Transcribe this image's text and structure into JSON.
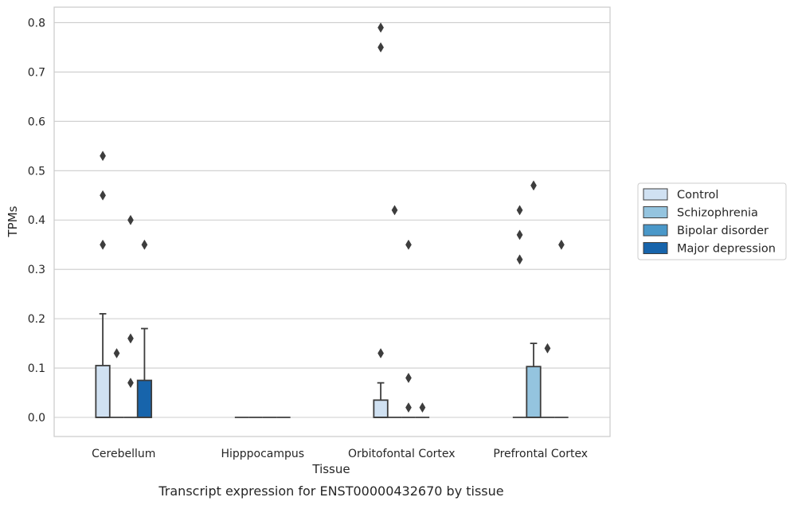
{
  "chart_data": {
    "type": "box",
    "caption": "Transcript expression for ENST00000432670 by tissue",
    "xlabel": "Tissue",
    "ylabel": "TPMs",
    "ylim": [
      -0.04,
      0.83
    ],
    "yticks": [
      0.0,
      0.1,
      0.2,
      0.3,
      0.4,
      0.5,
      0.6,
      0.7,
      0.8
    ],
    "ytick_labels": [
      "0.0",
      "0.1",
      "0.2",
      "0.3",
      "0.4",
      "0.5",
      "0.6",
      "0.7",
      "0.8"
    ],
    "grid": true,
    "legend_position": "right",
    "categories": [
      "Cerebellum",
      "Hipppocampus",
      "Orbitofontal Cortex",
      "Prefrontal Cortex"
    ],
    "series": [
      {
        "name": "Control",
        "color": "#d0e1f2",
        "boxes": [
          {
            "q1": 0.0,
            "median": 0.0,
            "q3": 0.105,
            "whisker_low": 0.0,
            "whisker_high": 0.21,
            "outliers": [
              0.35,
              0.45,
              0.53
            ]
          },
          {
            "q1": 0.0,
            "median": 0.0,
            "q3": 0.0,
            "whisker_low": 0.0,
            "whisker_high": 0.0,
            "outliers": []
          },
          {
            "q1": 0.0,
            "median": 0.0,
            "q3": 0.035,
            "whisker_low": 0.0,
            "whisker_high": 0.07,
            "outliers": [
              0.13,
              0.75,
              0.79
            ]
          },
          {
            "q1": 0.0,
            "median": 0.0,
            "q3": 0.0,
            "whisker_low": 0.0,
            "whisker_high": 0.0,
            "outliers": [
              0.32,
              0.37,
              0.42
            ]
          }
        ]
      },
      {
        "name": "Schizophrenia",
        "color": "#94c4df",
        "boxes": [
          {
            "q1": 0.0,
            "median": 0.0,
            "q3": 0.0,
            "whisker_low": 0.0,
            "whisker_high": 0.0,
            "outliers": [
              0.13
            ]
          },
          {
            "q1": 0.0,
            "median": 0.0,
            "q3": 0.0,
            "whisker_low": 0.0,
            "whisker_high": 0.0,
            "outliers": []
          },
          {
            "q1": 0.0,
            "median": 0.0,
            "q3": 0.0,
            "whisker_low": 0.0,
            "whisker_high": 0.0,
            "outliers": [
              0.42
            ]
          },
          {
            "q1": 0.0,
            "median": 0.0,
            "q3": 0.103,
            "whisker_low": 0.0,
            "whisker_high": 0.15,
            "outliers": [
              0.47
            ]
          }
        ]
      },
      {
        "name": "Bipolar disorder",
        "color": "#4a98c9",
        "boxes": [
          {
            "q1": 0.0,
            "median": 0.0,
            "q3": 0.0,
            "whisker_low": 0.0,
            "whisker_high": 0.0,
            "outliers": [
              0.07,
              0.16,
              0.4
            ]
          },
          {
            "q1": 0.0,
            "median": 0.0,
            "q3": 0.0,
            "whisker_low": 0.0,
            "whisker_high": 0.0,
            "outliers": []
          },
          {
            "q1": 0.0,
            "median": 0.0,
            "q3": 0.0,
            "whisker_low": 0.0,
            "whisker_high": 0.0,
            "outliers": [
              0.02,
              0.08,
              0.35
            ]
          },
          {
            "q1": 0.0,
            "median": 0.0,
            "q3": 0.0,
            "whisker_low": 0.0,
            "whisker_high": 0.0,
            "outliers": [
              0.14
            ]
          }
        ]
      },
      {
        "name": "Major depression",
        "color": "#1764ab",
        "boxes": [
          {
            "q1": 0.0,
            "median": 0.0,
            "q3": 0.075,
            "whisker_low": 0.0,
            "whisker_high": 0.18,
            "outliers": [
              0.35
            ]
          },
          {
            "q1": 0.0,
            "median": 0.0,
            "q3": 0.0,
            "whisker_low": 0.0,
            "whisker_high": 0.0,
            "outliers": []
          },
          {
            "q1": 0.0,
            "median": 0.0,
            "q3": 0.0,
            "whisker_low": 0.0,
            "whisker_high": 0.0,
            "outliers": [
              0.02
            ]
          },
          {
            "q1": 0.0,
            "median": 0.0,
            "q3": 0.0,
            "whisker_low": 0.0,
            "whisker_high": 0.0,
            "outliers": [
              0.35
            ]
          }
        ]
      }
    ]
  }
}
